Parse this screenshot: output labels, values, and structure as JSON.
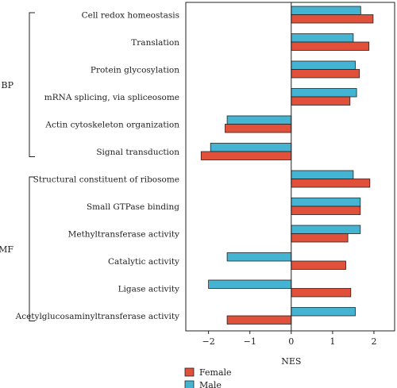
{
  "chart_data": {
    "type": "bar",
    "orientation": "horizontal",
    "xlabel": "NES",
    "xlim": [
      -2.55,
      2.5
    ],
    "xticks": [
      -2,
      -1,
      0,
      1,
      2
    ],
    "xtick_labels": [
      "−2",
      "−1",
      "0",
      "1",
      "2"
    ],
    "categories": [
      "Cell redox homeostasis",
      "Translation",
      "Protein glycosylation",
      "mRNA splicing, via spliceosome",
      "Actin cytoskeleton organization",
      "Signal transduction",
      "Structural constituent of ribosome",
      "Small GTPase binding",
      "Methyltransferase activity",
      "Catalytic activity",
      "Ligase activity",
      "Acetylglucosaminyltransferase activity"
    ],
    "groups": [
      {
        "label": "BP",
        "from": 0,
        "to": 5
      },
      {
        "label": "MF",
        "from": 6,
        "to": 11
      }
    ],
    "series": [
      {
        "name": "Male",
        "color": "#45b4d3",
        "values": [
          1.68,
          1.5,
          1.55,
          1.58,
          -1.55,
          -1.95,
          1.5,
          1.67,
          1.67,
          -1.55,
          -2.0,
          1.55
        ]
      },
      {
        "name": "Female",
        "color": "#e0503a",
        "values": [
          1.98,
          1.88,
          1.65,
          1.42,
          -1.6,
          -2.18,
          1.9,
          1.67,
          1.37,
          1.32,
          1.44,
          -1.55
        ]
      }
    ],
    "legend": {
      "position": "bottom-left",
      "order": [
        "Female",
        "Male"
      ]
    },
    "grid": false
  }
}
